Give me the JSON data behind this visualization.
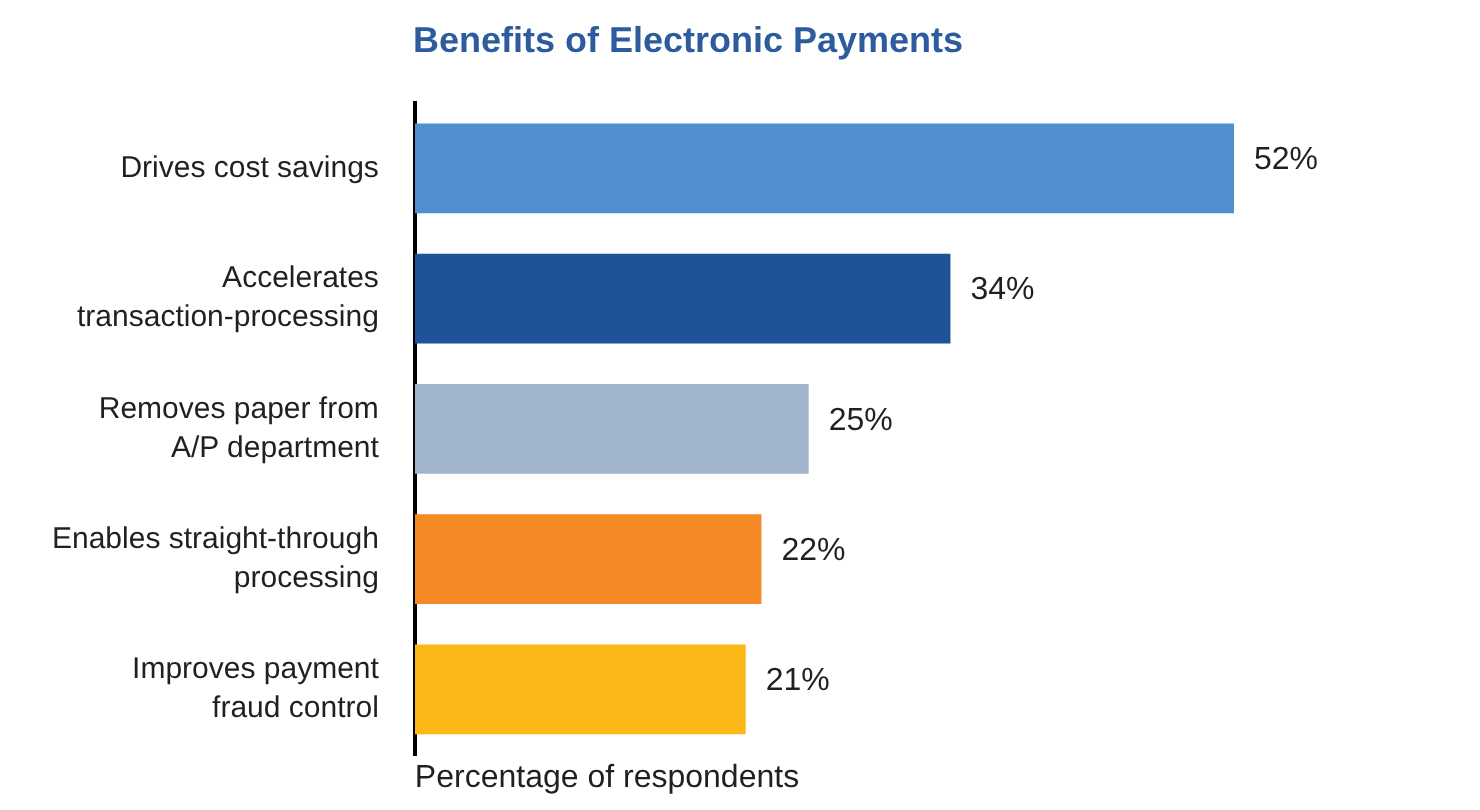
{
  "chart_data": {
    "type": "bar",
    "orientation": "horizontal",
    "title": "Benefits of Electronic Payments",
    "xlabel": "Percentage of respondents",
    "categories": [
      "Drives cost savings",
      "Accelerates\ntransaction-processing",
      "Removes paper from\nA/P department",
      "Enables straight-through\nprocessing",
      "Improves payment\nfraud control"
    ],
    "values": [
      52,
      34,
      25,
      22,
      21
    ],
    "colors": [
      "#4f8fce",
      "#1f5397",
      "#a1b6cd",
      "#f38a23",
      "#fbb817"
    ],
    "value_labels": [
      "52%",
      "34%",
      "25%",
      "22%",
      "21%"
    ],
    "tick_labels": "y",
    "grid": false,
    "legend": false
  }
}
